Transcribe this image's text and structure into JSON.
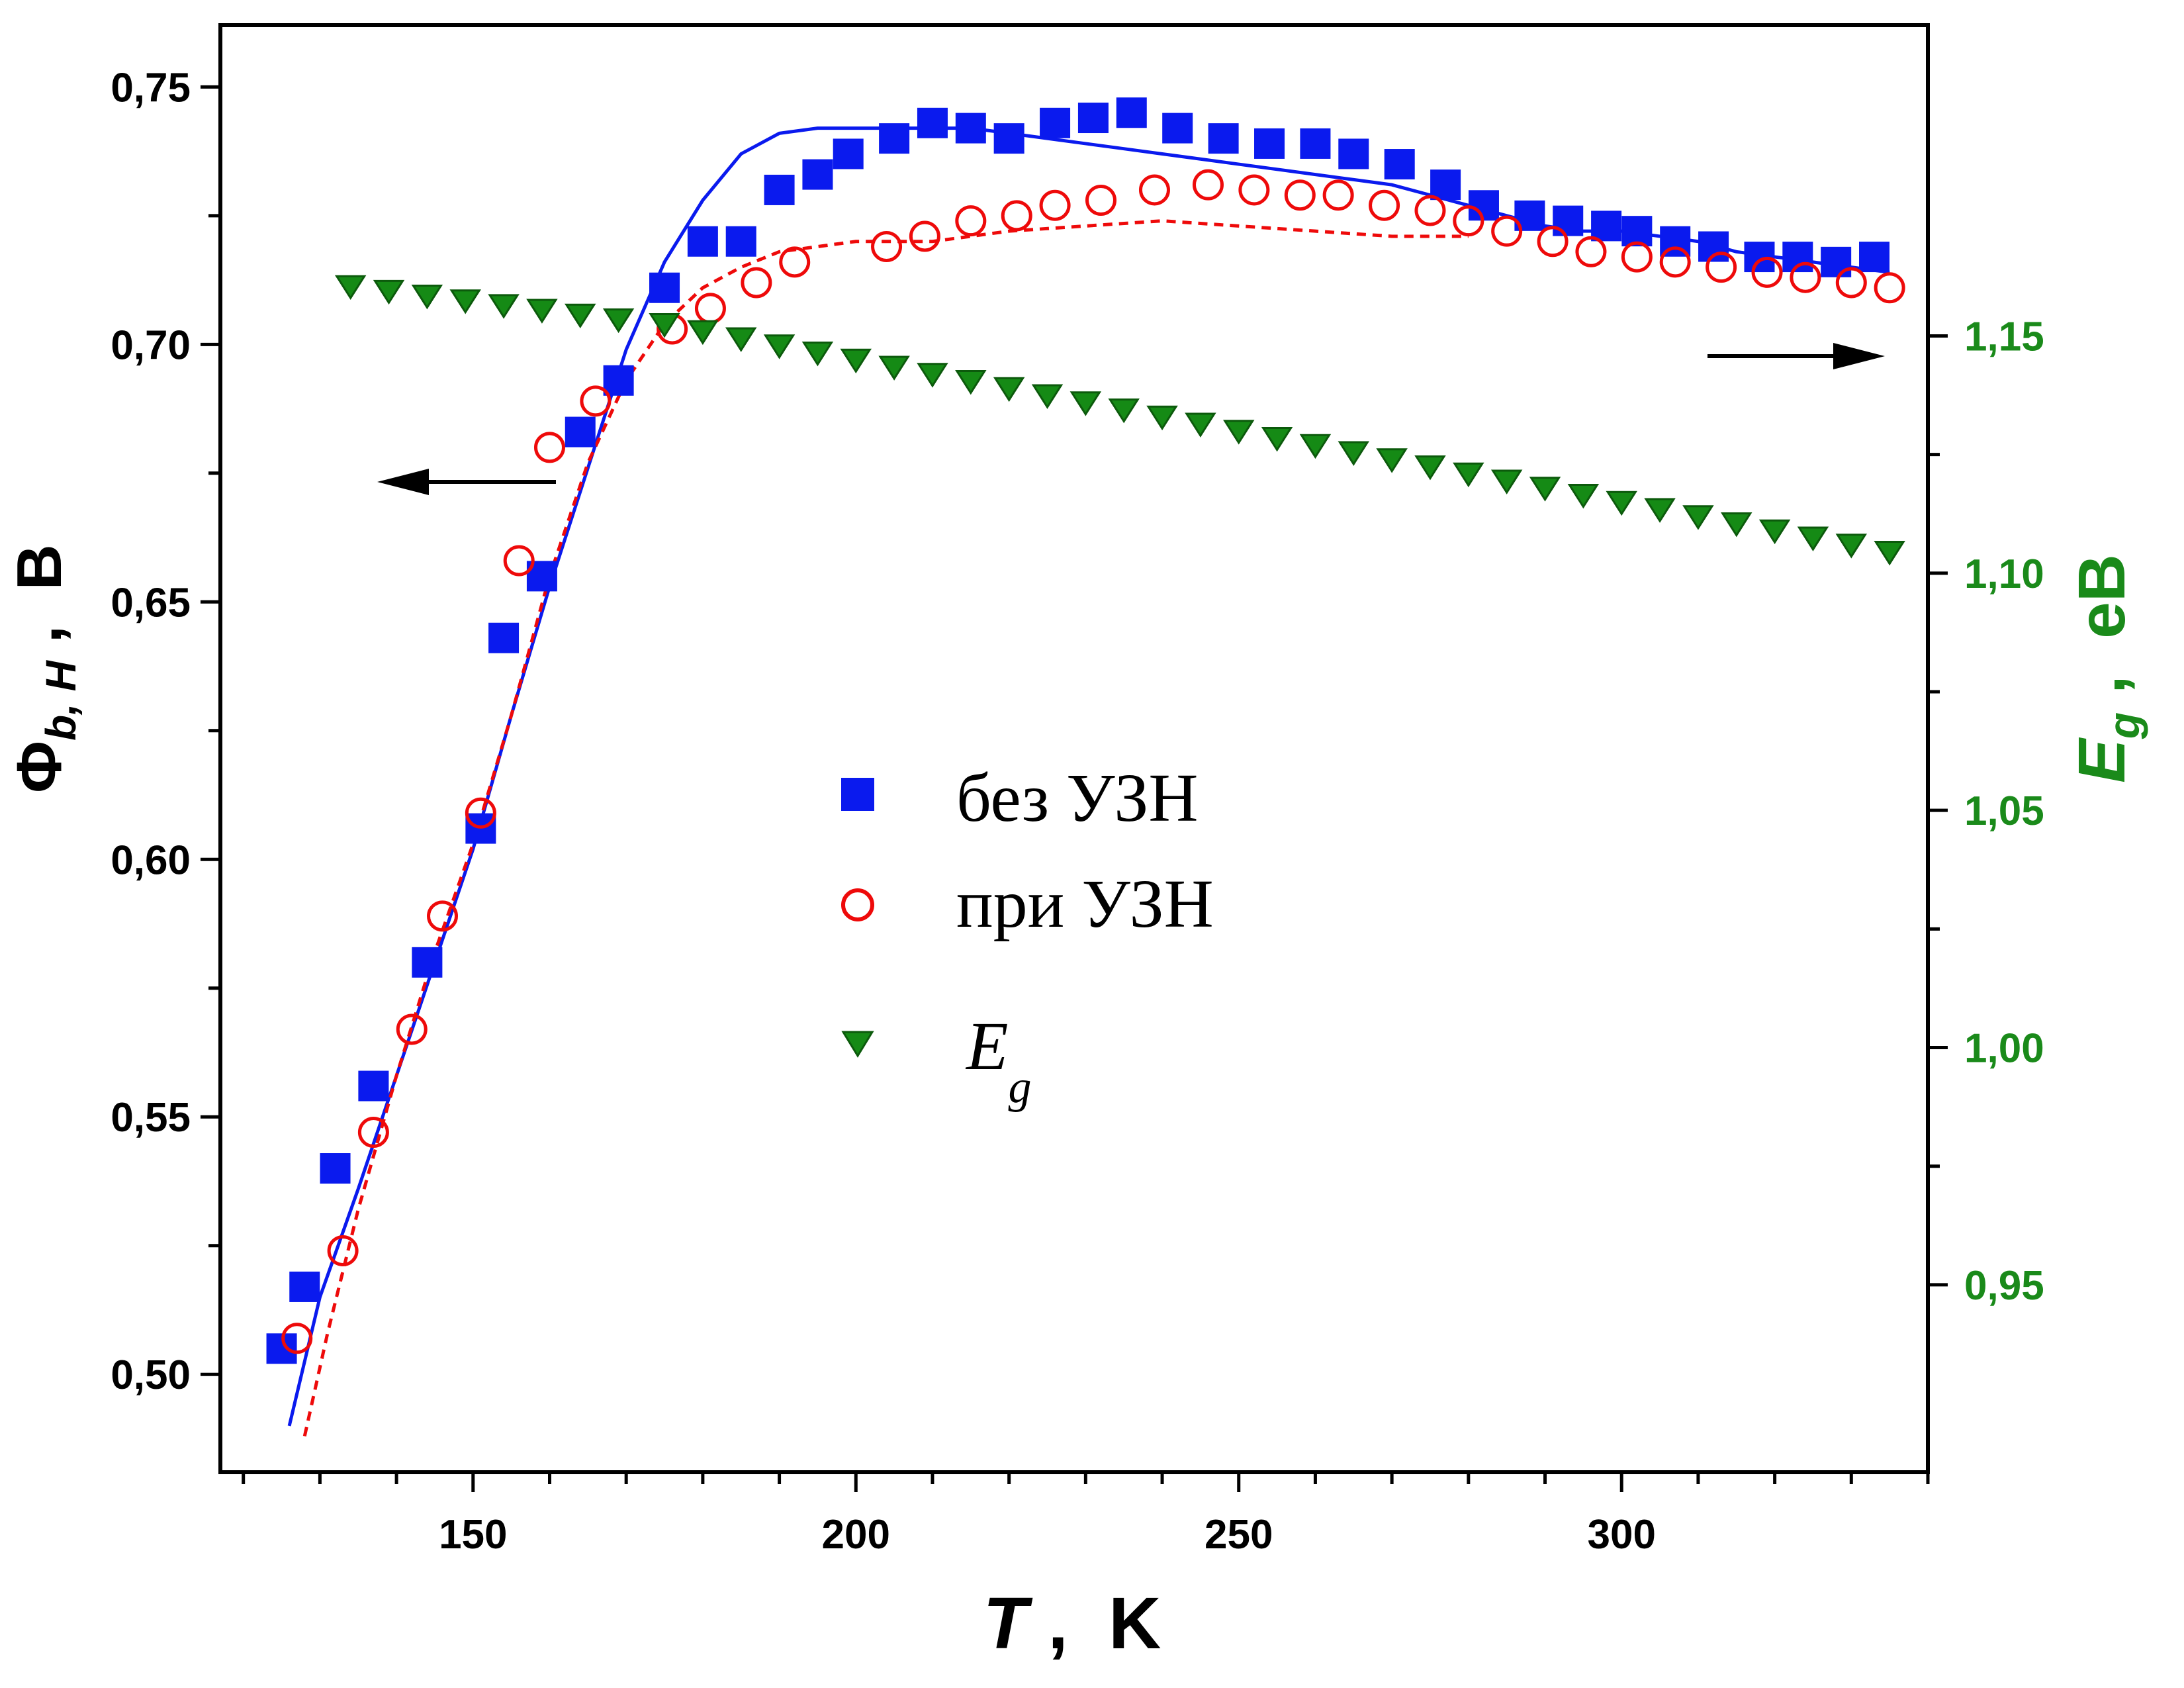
{
  "chart_data": {
    "type": "scatter",
    "x_axis": {
      "label_var": "T",
      "label_sep": " ,  ",
      "label_unit": "K",
      "range": [
        117,
        340
      ],
      "ticks": [
        150,
        200,
        250,
        300
      ],
      "tick_labels": [
        "150",
        "200",
        "250",
        "300"
      ],
      "minor_step": 10
    },
    "y_left": {
      "label_main": "Φ",
      "label_sub": "b, H",
      "label_sep": " ,  ",
      "label_unit": "В",
      "range": [
        0.481,
        0.762
      ],
      "ticks": [
        0.5,
        0.55,
        0.6,
        0.65,
        0.7,
        0.75
      ],
      "tick_labels": [
        "0,50",
        "0,55",
        "0,60",
        "0,65",
        "0,70",
        "0,75"
      ],
      "color": "#000000"
    },
    "y_right": {
      "label_main": "E",
      "label_sub": "g",
      "label_sep": " ,  ",
      "label_unit": "eB",
      "range": [
        0.9105,
        1.2155
      ],
      "ticks": [
        0.95,
        1.0,
        1.05,
        1.1,
        1.15
      ],
      "tick_labels": [
        "0,95",
        "1,00",
        "1,05",
        "1,10",
        "1,15"
      ],
      "color": "#1a8a1a"
    },
    "series": [
      {
        "name": "без УЗН",
        "axis": "left",
        "marker": "square",
        "color": "#0a1aee",
        "x": [
          125,
          128,
          132,
          137,
          144,
          151,
          154,
          159,
          164,
          169,
          175,
          180,
          185,
          190,
          195,
          199,
          205,
          210,
          215,
          220,
          226,
          231,
          236,
          242,
          248,
          254,
          260,
          265,
          271,
          277,
          282,
          288,
          293,
          298,
          302,
          307,
          312,
          318,
          323,
          328,
          333
        ],
        "y": [
          0.505,
          0.517,
          0.54,
          0.556,
          0.58,
          0.606,
          0.643,
          0.655,
          0.683,
          0.693,
          0.711,
          0.72,
          0.72,
          0.73,
          0.733,
          0.737,
          0.74,
          0.743,
          0.742,
          0.74,
          0.743,
          0.744,
          0.745,
          0.742,
          0.74,
          0.739,
          0.739,
          0.737,
          0.735,
          0.731,
          0.727,
          0.725,
          0.724,
          0.723,
          0.722,
          0.72,
          0.719,
          0.717,
          0.717,
          0.716,
          0.717
        ]
      },
      {
        "name": "при УЗН",
        "axis": "left",
        "marker": "circle",
        "color": "#ee0a0a",
        "x": [
          127,
          133,
          137,
          142,
          146,
          151,
          156,
          160,
          166,
          176,
          181,
          187,
          192,
          204,
          209,
          215,
          221,
          226,
          232,
          239,
          246,
          252,
          258,
          263,
          269,
          275,
          280,
          285,
          291,
          296,
          302,
          307,
          313,
          319,
          324,
          330,
          335
        ],
        "y": [
          0.507,
          0.524,
          0.547,
          0.567,
          0.589,
          0.609,
          0.658,
          0.68,
          0.689,
          0.703,
          0.707,
          0.712,
          0.716,
          0.719,
          0.721,
          0.724,
          0.725,
          0.727,
          0.728,
          0.73,
          0.731,
          0.73,
          0.729,
          0.729,
          0.727,
          0.726,
          0.724,
          0.722,
          0.72,
          0.718,
          0.717,
          0.716,
          0.715,
          0.714,
          0.713,
          0.712,
          0.711
        ]
      },
      {
        "name": "E",
        "name_sub": "g",
        "axis": "right",
        "marker": "triangle-down",
        "color": "#158a15",
        "x": [
          134,
          139,
          144,
          149,
          154,
          159,
          164,
          169,
          175,
          180,
          185,
          190,
          195,
          200,
          205,
          210,
          215,
          220,
          225,
          230,
          235,
          240,
          245,
          250,
          255,
          260,
          265,
          270,
          275,
          280,
          285,
          290,
          295,
          300,
          305,
          310,
          315,
          320,
          325,
          330,
          335
        ],
        "y": [
          1.1605,
          1.1595,
          1.1585,
          1.1575,
          1.1565,
          1.1555,
          1.1545,
          1.1535,
          1.1525,
          1.151,
          1.1495,
          1.148,
          1.1465,
          1.145,
          1.1435,
          1.142,
          1.1405,
          1.139,
          1.1375,
          1.136,
          1.1345,
          1.133,
          1.1315,
          1.13,
          1.1285,
          1.127,
          1.1255,
          1.124,
          1.1225,
          1.121,
          1.1195,
          1.118,
          1.1165,
          1.115,
          1.1135,
          1.112,
          1.1105,
          1.109,
          1.1075,
          1.106,
          1.1045
        ]
      }
    ],
    "fit_lines": [
      {
        "for_series": "без УЗН",
        "style": "solid",
        "color": "#0a1aee",
        "x": [
          126,
          130,
          135,
          140,
          145,
          150,
          155,
          160,
          165,
          170,
          175,
          180,
          185,
          190,
          195,
          200,
          205,
          210,
          215,
          220,
          225,
          230,
          235,
          240,
          245,
          250,
          255,
          260,
          265,
          270,
          275,
          280,
          285,
          290,
          295,
          300,
          305,
          310,
          315,
          320,
          325,
          330,
          335
        ],
        "y": [
          0.49,
          0.515,
          0.536,
          0.558,
          0.58,
          0.602,
          0.628,
          0.653,
          0.676,
          0.699,
          0.716,
          0.728,
          0.737,
          0.741,
          0.742,
          0.742,
          0.742,
          0.742,
          0.742,
          0.741,
          0.74,
          0.739,
          0.738,
          0.737,
          0.736,
          0.735,
          0.734,
          0.733,
          0.732,
          0.731,
          0.729,
          0.727,
          0.725,
          0.723,
          0.722,
          0.722,
          0.721,
          0.72,
          0.718,
          0.717,
          0.716,
          0.715,
          0.714
        ]
      },
      {
        "for_series": "при УЗН",
        "style": "dashed",
        "color": "#ee0a0a",
        "x": [
          128,
          131,
          135,
          140,
          145,
          150,
          155,
          160,
          165,
          170,
          175,
          180,
          185,
          190,
          195,
          200,
          205,
          210,
          215,
          220,
          230,
          240,
          250,
          260,
          270,
          280
        ],
        "y": [
          0.488,
          0.508,
          0.532,
          0.558,
          0.582,
          0.603,
          0.628,
          0.655,
          0.677,
          0.693,
          0.704,
          0.711,
          0.715,
          0.718,
          0.719,
          0.72,
          0.72,
          0.72,
          0.721,
          0.722,
          0.723,
          0.724,
          0.723,
          0.722,
          0.721,
          0.721
        ]
      }
    ],
    "arrows": [
      {
        "direction": "left",
        "points_to": "left axis"
      },
      {
        "direction": "right",
        "points_to": "right axis"
      }
    ],
    "legend": {
      "placement": "center"
    }
  }
}
